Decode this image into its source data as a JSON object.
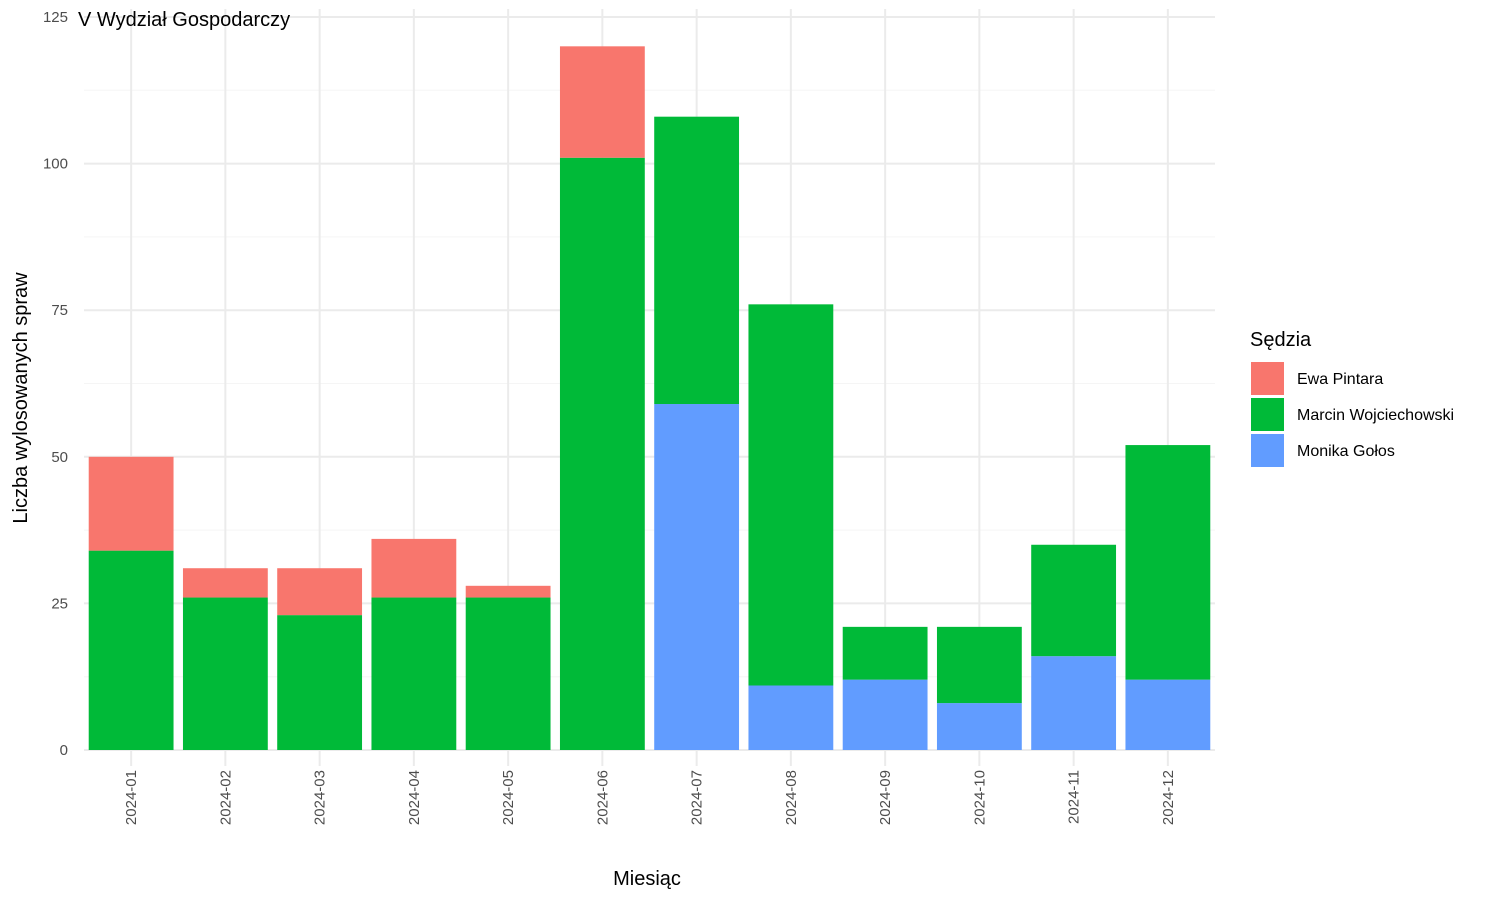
{
  "chart_data": {
    "type": "bar",
    "stacked": true,
    "title": "V Wydział Gospodarczy",
    "xlabel": "Miesiąc",
    "ylabel": "Liczba wylosowanych spraw",
    "ylim": [
      0,
      125
    ],
    "yticks": [
      0,
      25,
      50,
      75,
      100,
      125
    ],
    "grid": true,
    "legend": {
      "title": "Sędzia",
      "placement": "right"
    },
    "categories": [
      "2024-01",
      "2024-02",
      "2024-03",
      "2024-04",
      "2024-05",
      "2024-06",
      "2024-07",
      "2024-08",
      "2024-09",
      "2024-10",
      "2024-11",
      "2024-12"
    ],
    "series": [
      {
        "name": "Monika Gołos",
        "color": "#619CFF",
        "values": [
          0,
          0,
          0,
          0,
          0,
          0,
          59,
          11,
          12,
          8,
          16,
          12
        ]
      },
      {
        "name": "Marcin Wojciechowski",
        "color": "#00BA38",
        "values": [
          34,
          26,
          23,
          26,
          26,
          101,
          49,
          65,
          9,
          13,
          19,
          40
        ]
      },
      {
        "name": "Ewa Pintara",
        "color": "#F8766D",
        "values": [
          16,
          5,
          8,
          10,
          2,
          19,
          0,
          0,
          0,
          0,
          0,
          0
        ]
      }
    ],
    "legend_order": [
      "Ewa Pintara",
      "Marcin Wojciechowski",
      "Monika Gołos"
    ]
  }
}
